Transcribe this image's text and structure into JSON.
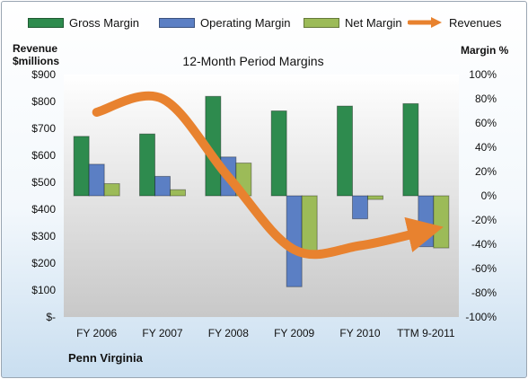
{
  "legend": {
    "gross_label": "Gross Margin",
    "operating_label": "Operating Margin",
    "net_label": "Net Margin",
    "revenues_label": "Revenues"
  },
  "left_axis_title_line1": "Revenue",
  "left_axis_title_line2": "$millions",
  "right_axis_title": "Margin %",
  "company": "Penn Virginia",
  "colors": {
    "gross": "#2e8b4e",
    "operating": "#5b7fc4",
    "net": "#9cbb58",
    "revenues": "#e8822f",
    "plot_top": "#ffffff",
    "plot_bottom": "#c8c8c8"
  },
  "chart_data": {
    "type": "bar",
    "title": "12-Month Period Margins",
    "categories": [
      "FY 2006",
      "FY 2007",
      "FY 2008",
      "FY 2009",
      "FY 2010",
      "TTM 9-2011"
    ],
    "y_left": {
      "label": "Revenue $millions",
      "range": [
        0,
        900
      ],
      "ticks": [
        "$-",
        "$100",
        "$200",
        "$300",
        "$400",
        "$500",
        "$600",
        "$700",
        "$800",
        "$900"
      ]
    },
    "y_right": {
      "label": "Margin %",
      "range": [
        -100,
        100
      ],
      "ticks": [
        "-100%",
        "-80%",
        "-60%",
        "-40%",
        "-20%",
        "0%",
        "20%",
        "40%",
        "60%",
        "80%",
        "100%"
      ]
    },
    "series": [
      {
        "name": "Gross Margin",
        "axis": "right",
        "kind": "bar",
        "values": [
          49,
          51,
          82,
          70,
          74,
          76
        ]
      },
      {
        "name": "Operating Margin",
        "axis": "right",
        "kind": "bar",
        "values": [
          26,
          16,
          32,
          -75,
          -19,
          -42
        ]
      },
      {
        "name": "Net Margin",
        "axis": "right",
        "kind": "bar",
        "values": [
          10,
          5,
          27,
          -46,
          -3,
          -43
        ]
      },
      {
        "name": "Revenues",
        "axis": "left",
        "kind": "arrow-line",
        "values": [
          760,
          810,
          520,
          250,
          265,
          320
        ]
      }
    ],
    "grid": false,
    "legend_position": "top"
  }
}
